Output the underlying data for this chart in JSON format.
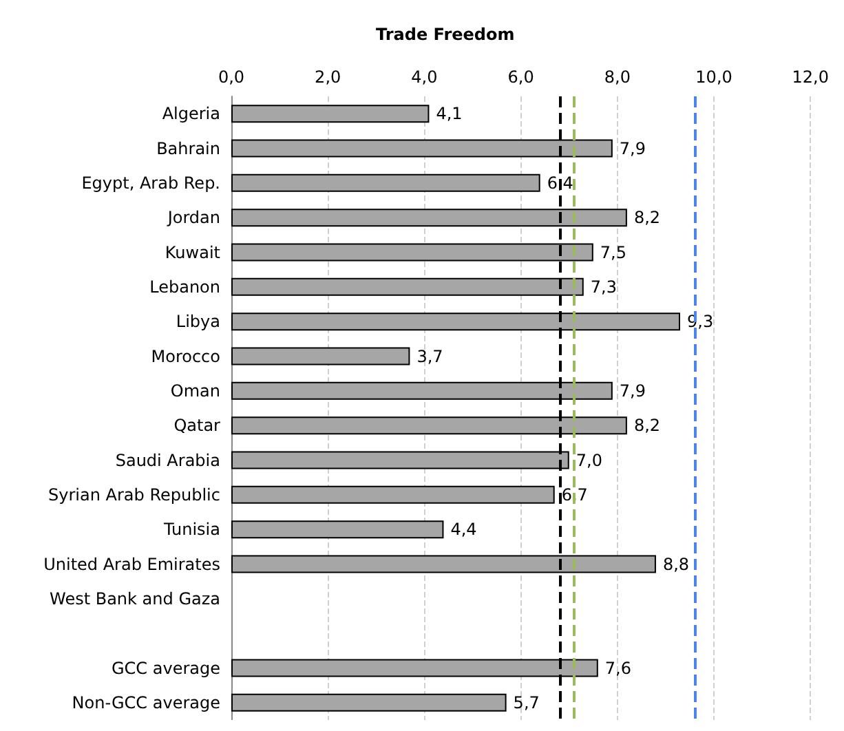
{
  "chart_data": {
    "type": "bar",
    "orientation": "horizontal",
    "title": "Trade Freedom",
    "categories": [
      "Algeria",
      "Bahrain",
      "Egypt, Arab Rep.",
      "Jordan",
      "Kuwait",
      "Lebanon",
      "Libya",
      "Morocco",
      "Oman",
      "Qatar",
      "Saudi Arabia",
      "Syrian Arab Republic",
      "Tunisia",
      "United Arab Emirates",
      "West Bank and Gaza",
      null,
      "GCC average",
      "Non-GCC average"
    ],
    "values": [
      4.1,
      7.9,
      6.4,
      8.2,
      7.5,
      7.3,
      9.3,
      3.7,
      7.9,
      8.2,
      7.0,
      6.7,
      4.4,
      8.8,
      null,
      null,
      7.6,
      5.7
    ],
    "value_labels": [
      "4,1",
      "7,9",
      "6,4",
      "8,2",
      "7,5",
      "7,3",
      "9,3",
      "3,7",
      "7,9",
      "8,2",
      "7,0",
      "6,7",
      "4,4",
      "8,8",
      null,
      null,
      "7,6",
      "5,7"
    ],
    "color": "#a6a6a6",
    "xlim": [
      0,
      12
    ],
    "xticks": [
      {
        "value": 0,
        "label": "0,0"
      },
      {
        "value": 2,
        "label": "2,0"
      },
      {
        "value": 4,
        "label": "4,0"
      },
      {
        "value": 6,
        "label": "6,0"
      },
      {
        "value": 8,
        "label": "8,0"
      },
      {
        "value": 10,
        "label": "10,0"
      },
      {
        "value": 12,
        "label": "12,0"
      }
    ],
    "grid": "x",
    "ref_lines": [
      {
        "axis": "x",
        "value": 6.8,
        "color": "#000000",
        "line_style": "dashed"
      },
      {
        "axis": "x",
        "value": 7.1,
        "color": "#9bbb59",
        "line_style": "dashed"
      },
      {
        "axis": "x",
        "value": 9.6,
        "color": "#4a86e8",
        "line_style": "dashed"
      }
    ]
  }
}
